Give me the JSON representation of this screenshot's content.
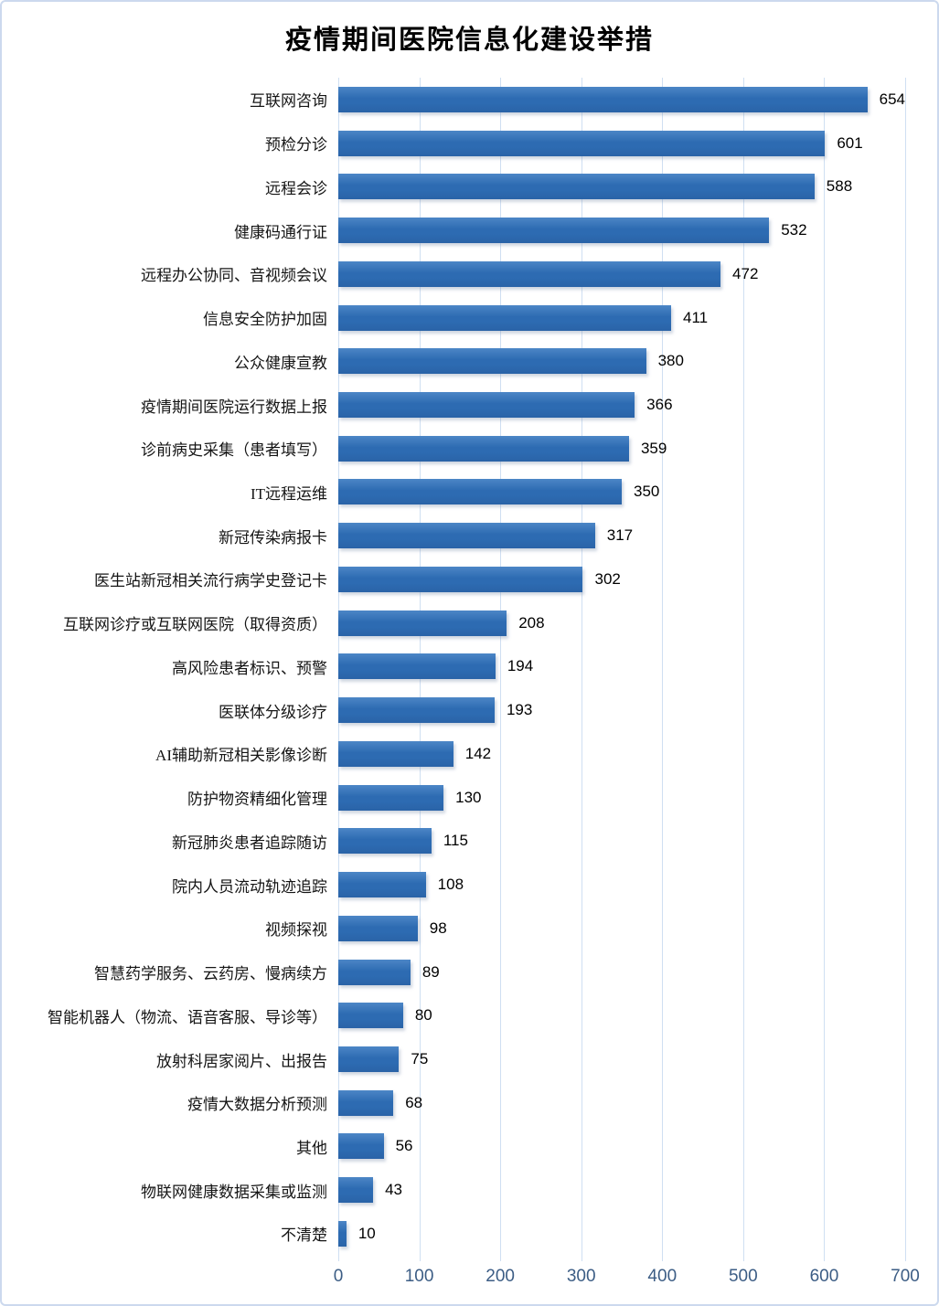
{
  "chart_data": {
    "type": "bar",
    "orientation": "horizontal",
    "title": "疫情期间医院信息化建设举措",
    "categories": [
      "互联网咨询",
      "预检分诊",
      "远程会诊",
      "健康码通行证",
      "远程办公协同、音视频会议",
      "信息安全防护加固",
      "公众健康宣教",
      "疫情期间医院运行数据上报",
      "诊前病史采集（患者填写）",
      "IT远程运维",
      "新冠传染病报卡",
      "医生站新冠相关流行病学史登记卡",
      "互联网诊疗或互联网医院（取得资质）",
      "高风险患者标识、预警",
      "医联体分级诊疗",
      "AI辅助新冠相关影像诊断",
      "防护物资精细化管理",
      "新冠肺炎患者追踪随访",
      "院内人员流动轨迹追踪",
      "视频探视",
      "智慧药学服务、云药房、慢病续方",
      "智能机器人（物流、语音客服、导诊等）",
      "放射科居家阅片、出报告",
      "疫情大数据分析预测",
      "其他",
      "物联网健康数据采集或监测",
      "不清楚"
    ],
    "values": [
      654,
      601,
      588,
      532,
      472,
      411,
      380,
      366,
      359,
      350,
      317,
      302,
      208,
      194,
      193,
      142,
      130,
      115,
      108,
      98,
      89,
      80,
      75,
      68,
      56,
      43,
      10
    ],
    "xlabel": "",
    "ylabel": "",
    "xlim": [
      0,
      700
    ],
    "x_ticks": [
      0,
      100,
      200,
      300,
      400,
      500,
      600,
      700
    ],
    "grid": "vertical gridlines on, horizontal off",
    "legend": "none",
    "data_labels": "value shown at end of each bar",
    "colors": {
      "bar_gradient_top": "#4c86c6",
      "bar_gradient_mid": "#2d6bb2",
      "bar_gradient_bottom": "#2a63a7",
      "gridline": "#cfdff2",
      "axis_tick_text": "#3c5d85",
      "category_text": "#151515",
      "value_text": "#000000",
      "chart_border": "#ccd9ee",
      "background": "#ffffff"
    }
  }
}
